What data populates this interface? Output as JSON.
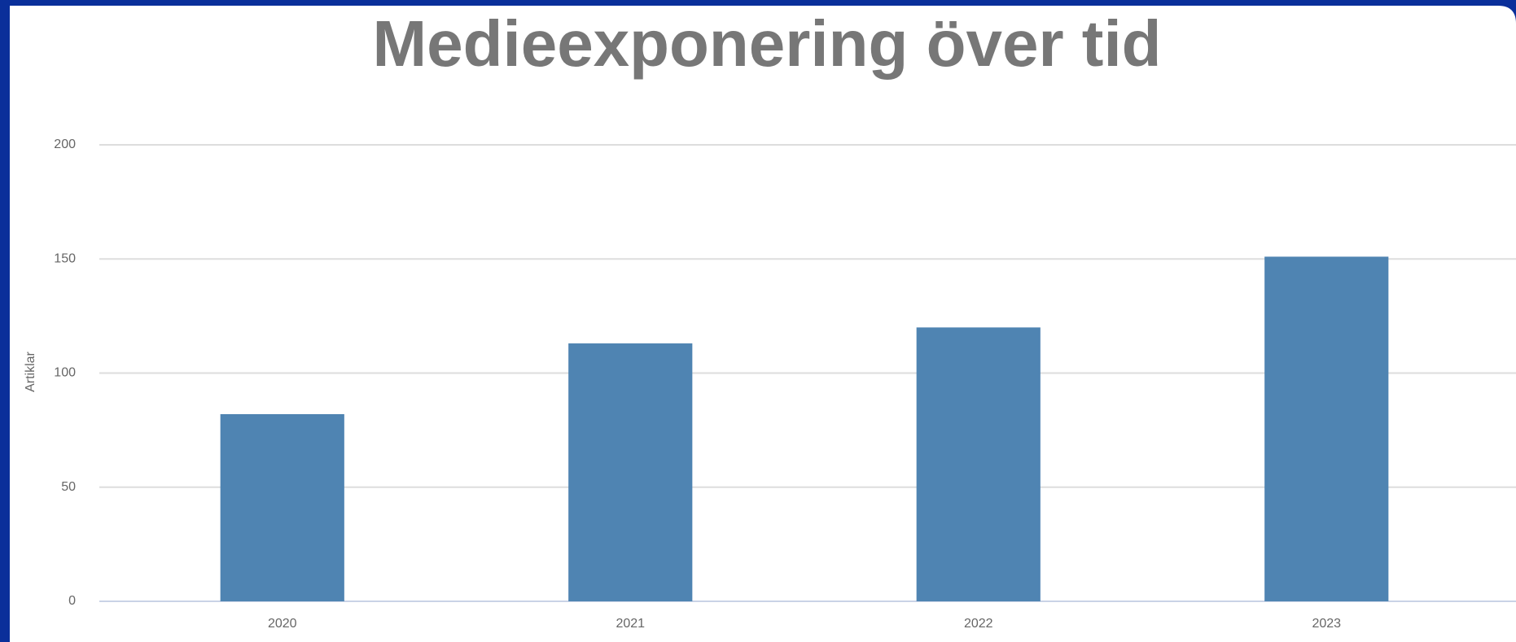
{
  "chart_data": {
    "type": "bar",
    "title": "Medieexponering över tid",
    "y_label": "Artiklar",
    "categories": [
      "2020",
      "2021",
      "2022",
      "2023"
    ],
    "values": [
      82,
      113,
      120,
      151
    ],
    "color": "#4f84b2",
    "ylim": [
      0,
      200
    ],
    "yticks": [
      0,
      50,
      100,
      150,
      200
    ],
    "grid": true
  }
}
